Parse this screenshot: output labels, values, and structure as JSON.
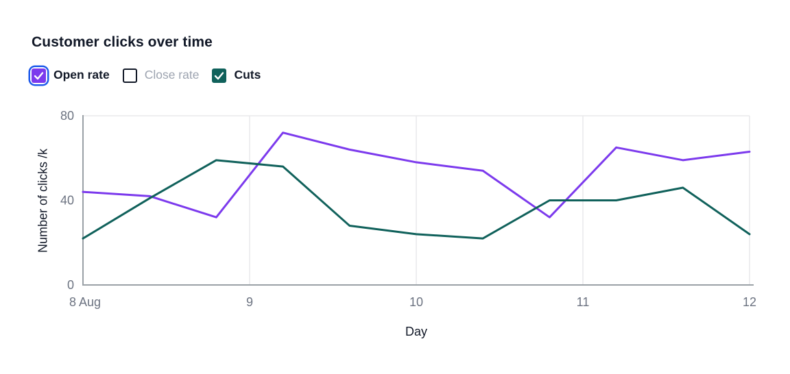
{
  "header": {
    "title": "Customer clicks over time"
  },
  "legend": {
    "items": [
      {
        "label": "Open rate",
        "checked": true,
        "focused": true,
        "color": "#7c3aed"
      },
      {
        "label": "Close rate",
        "checked": false,
        "focused": false,
        "color": "#ffffff"
      },
      {
        "label": "Cuts",
        "checked": true,
        "focused": false,
        "color": "#10615b"
      }
    ]
  },
  "chart_data": {
    "type": "line",
    "title": "Customer clicks over time",
    "xlabel": "Day",
    "ylabel": "Number of clicks /k",
    "xlim": [
      8,
      12
    ],
    "ylim": [
      0,
      80
    ],
    "x": [
      8,
      8.4,
      8.8,
      9.2,
      9.6,
      10,
      10.4,
      10.8,
      11.2,
      11.6,
      12
    ],
    "series": [
      {
        "name": "Open rate",
        "color": "#7c3aed",
        "values": [
          44,
          42,
          32,
          72,
          64,
          58,
          54,
          32,
          65,
          59,
          63
        ]
      },
      {
        "name": "Cuts",
        "color": "#10615b",
        "values": [
          22,
          41,
          59,
          56,
          28,
          24,
          22,
          40,
          40,
          46,
          24
        ]
      }
    ],
    "xticks": [
      {
        "v": 8,
        "label": "8 Aug"
      },
      {
        "v": 9,
        "label": "9"
      },
      {
        "v": 10,
        "label": "10"
      },
      {
        "v": 11,
        "label": "11"
      },
      {
        "v": 12,
        "label": "12"
      }
    ],
    "yticks": [
      {
        "v": 0,
        "label": "0"
      },
      {
        "v": 40,
        "label": "40"
      },
      {
        "v": 80,
        "label": "80"
      }
    ],
    "grid": {
      "vertical_days": [
        9,
        10,
        11,
        12
      ],
      "horizontal_values": [
        80
      ]
    },
    "legend_position": "top"
  },
  "colors": {
    "focus_ring": "#1e5aeb",
    "text_strong": "#111827",
    "text_muted": "#9ca3af",
    "tick_label": "#6b7280",
    "axis_line": "#9aa0a6",
    "grid_line": "#e9e9eb",
    "checkmark": "#ffffff"
  }
}
